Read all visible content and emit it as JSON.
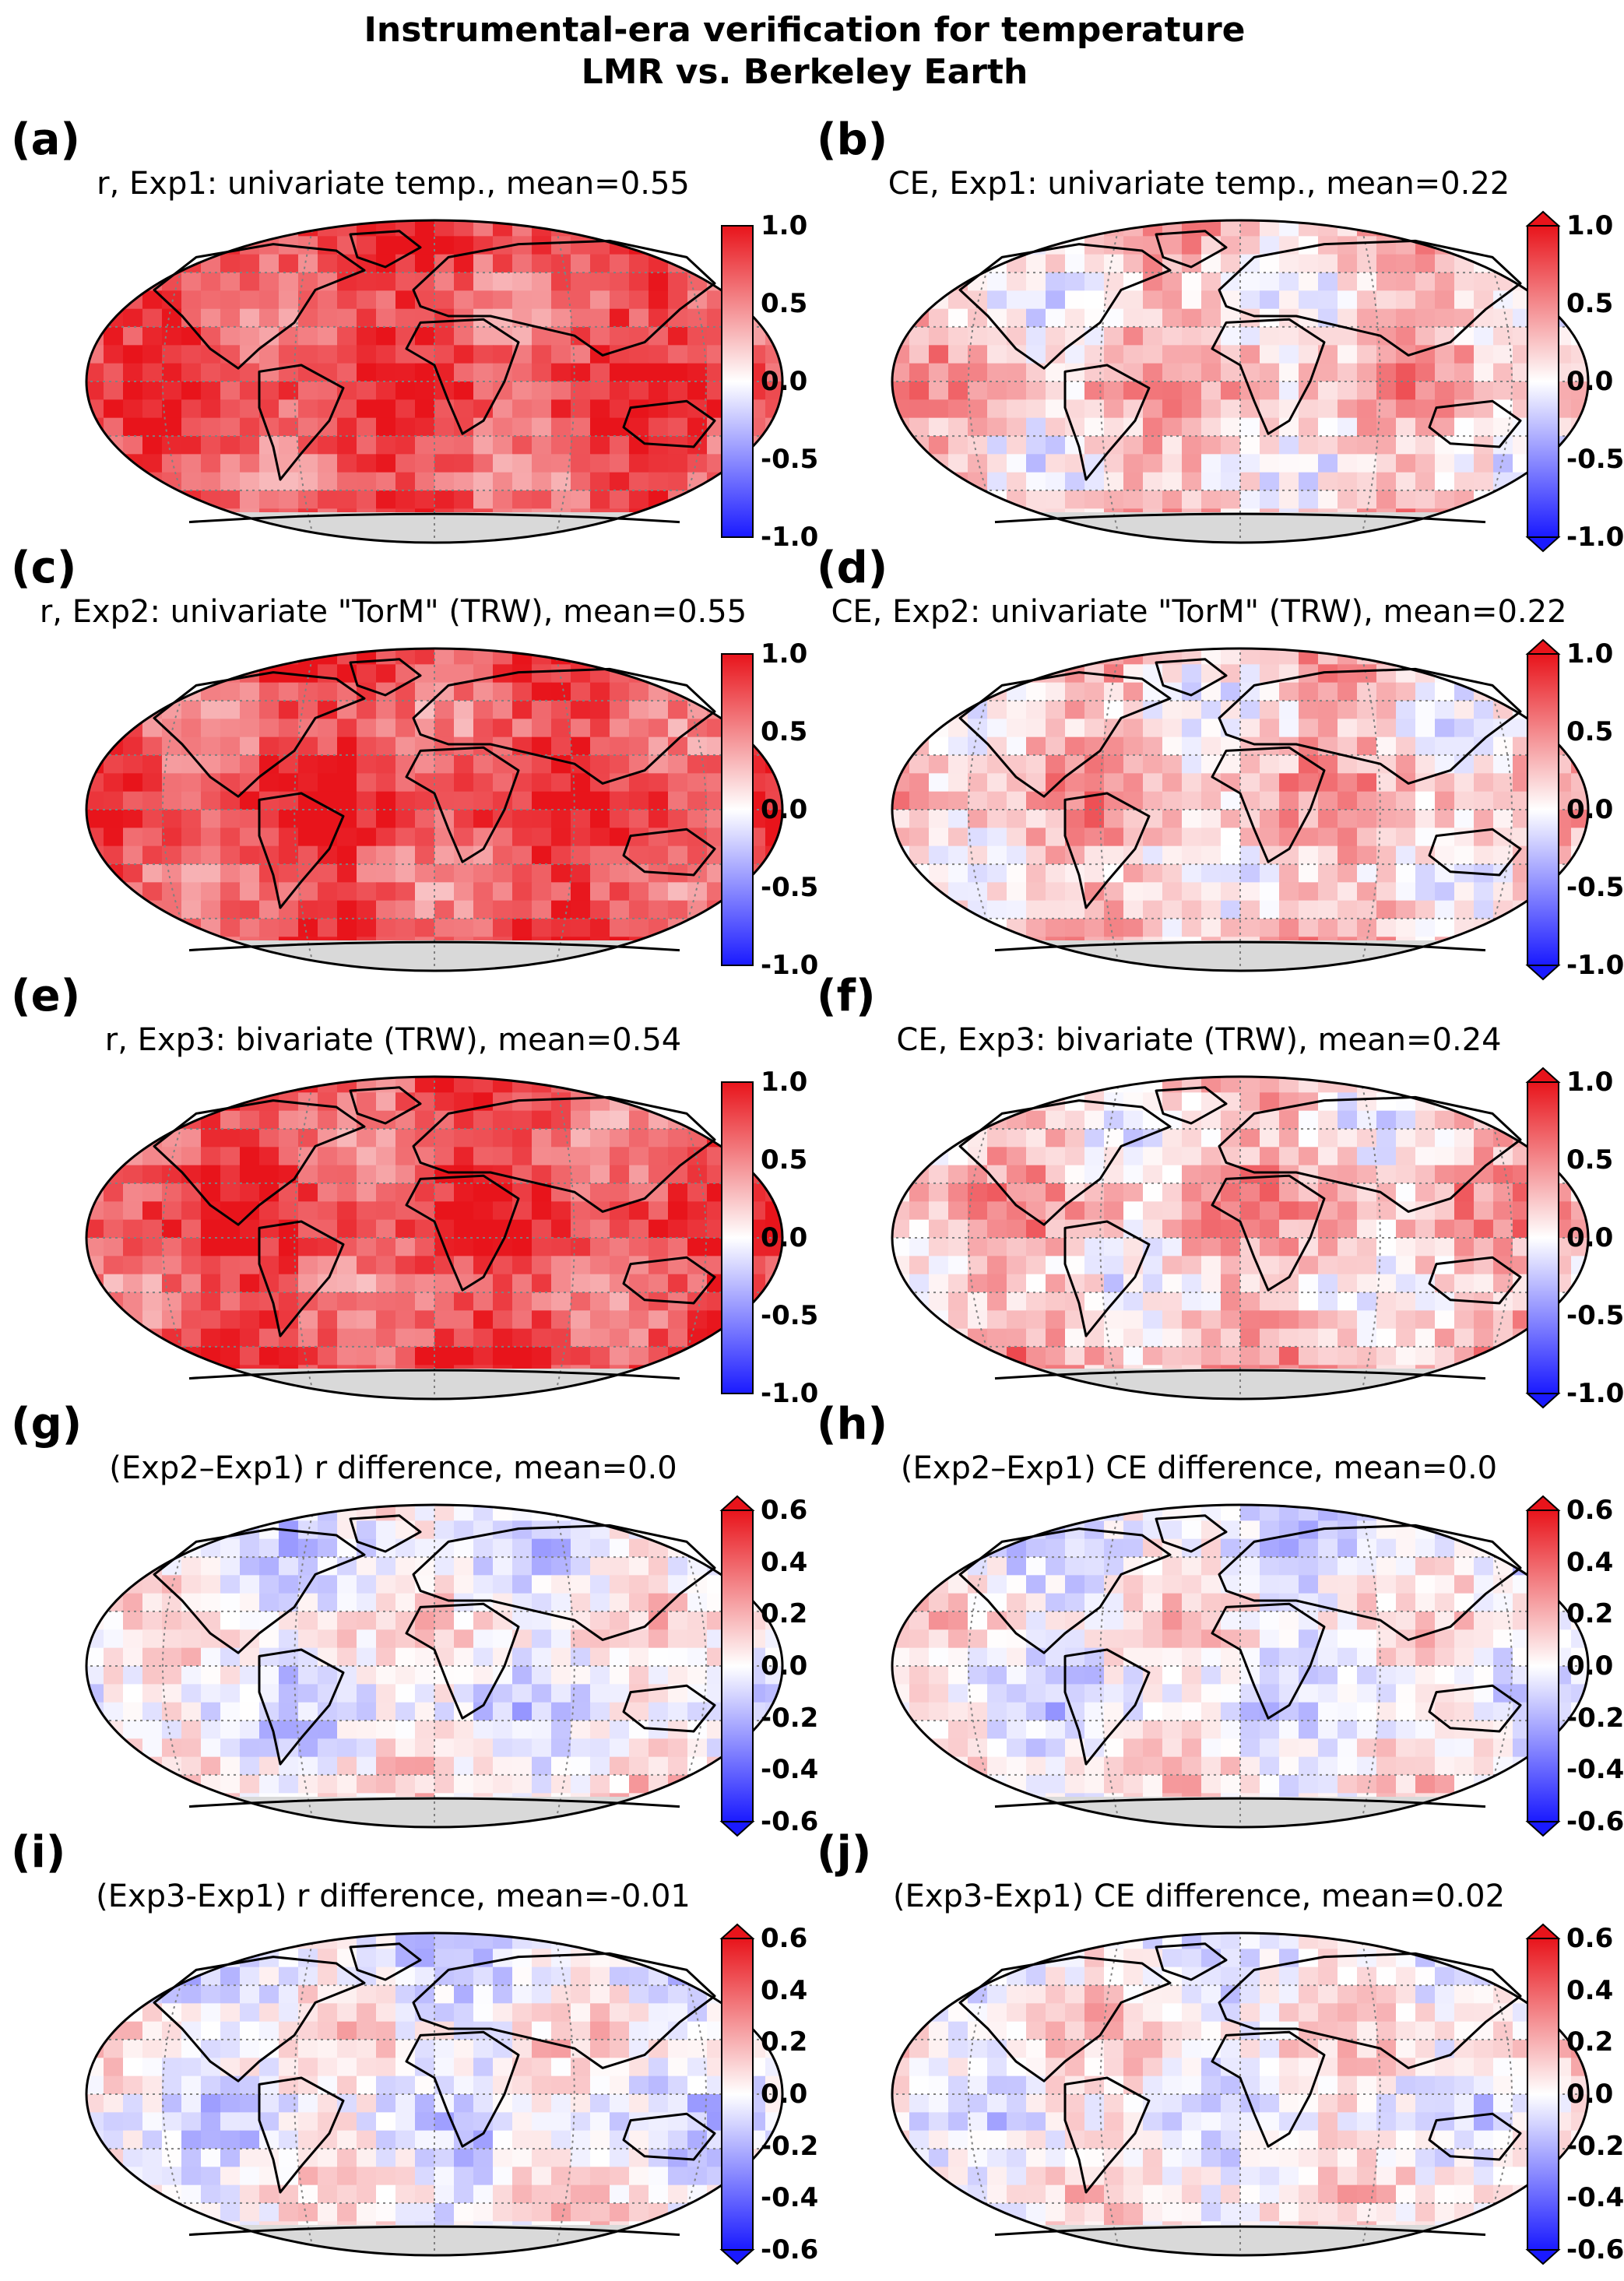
{
  "figure": {
    "title_line1": "Instrumental-era verification for temperature",
    "title_line2": "LMR vs. Berkeley Earth"
  },
  "colors": {
    "red": "#e8141b",
    "blue": "#1a1aff",
    "white": "#ffffff",
    "land_mask": "#d9d9d9",
    "coast": "#000000"
  },
  "chart_data": [
    {
      "type": "heatmap",
      "panel": "(a)",
      "title": "r, Exp1: univariate temp., mean=0.55",
      "mean": 0.55,
      "colorbar": {
        "range": [
          -1.0,
          1.0
        ],
        "ticks": [
          "1.0",
          "0.5",
          "0.0",
          "-0.5",
          "-1.0"
        ],
        "extend": "none",
        "cmap": "bwr"
      }
    },
    {
      "type": "heatmap",
      "panel": "(b)",
      "title": "CE, Exp1: univariate temp., mean=0.22",
      "mean": 0.22,
      "colorbar": {
        "range": [
          -1.0,
          1.0
        ],
        "ticks": [
          "1.0",
          "0.5",
          "0.0",
          "-0.5",
          "-1.0"
        ],
        "extend": "both",
        "cmap": "bwr"
      }
    },
    {
      "type": "heatmap",
      "panel": "(c)",
      "title": "r, Exp2: univariate \"TorM\" (TRW), mean=0.55",
      "mean": 0.55,
      "colorbar": {
        "range": [
          -1.0,
          1.0
        ],
        "ticks": [
          "1.0",
          "0.5",
          "0.0",
          "-0.5",
          "-1.0"
        ],
        "extend": "none",
        "cmap": "bwr"
      }
    },
    {
      "type": "heatmap",
      "panel": "(d)",
      "title": "CE, Exp2: univariate \"TorM\" (TRW), mean=0.22",
      "mean": 0.22,
      "colorbar": {
        "range": [
          -1.0,
          1.0
        ],
        "ticks": [
          "1.0",
          "0.5",
          "0.0",
          "-0.5",
          "-1.0"
        ],
        "extend": "both",
        "cmap": "bwr"
      }
    },
    {
      "type": "heatmap",
      "panel": "(e)",
      "title": "r, Exp3: bivariate (TRW), mean=0.54",
      "mean": 0.54,
      "colorbar": {
        "range": [
          -1.0,
          1.0
        ],
        "ticks": [
          "1.0",
          "0.5",
          "0.0",
          "-0.5",
          "-1.0"
        ],
        "extend": "none",
        "cmap": "bwr"
      }
    },
    {
      "type": "heatmap",
      "panel": "(f)",
      "title": "CE, Exp3: bivariate (TRW), mean=0.24",
      "mean": 0.24,
      "colorbar": {
        "range": [
          -1.0,
          1.0
        ],
        "ticks": [
          "1.0",
          "0.5",
          "0.0",
          "-0.5",
          "-1.0"
        ],
        "extend": "both",
        "cmap": "bwr"
      }
    },
    {
      "type": "heatmap",
      "panel": "(g)",
      "title": "(Exp2–Exp1) r difference, mean=0.0",
      "mean": 0.0,
      "colorbar": {
        "range": [
          -0.6,
          0.6
        ],
        "ticks": [
          "0.6",
          "0.4",
          "0.2",
          "0.0",
          "-0.2",
          "-0.4",
          "-0.6"
        ],
        "extend": "both",
        "cmap": "bwr"
      }
    },
    {
      "type": "heatmap",
      "panel": "(h)",
      "title": "(Exp2–Exp1) CE difference, mean=0.0",
      "mean": 0.0,
      "colorbar": {
        "range": [
          -0.6,
          0.6
        ],
        "ticks": [
          "0.6",
          "0.4",
          "0.2",
          "0.0",
          "-0.2",
          "-0.4",
          "-0.6"
        ],
        "extend": "both",
        "cmap": "bwr"
      }
    },
    {
      "type": "heatmap",
      "panel": "(i)",
      "title": "(Exp3-Exp1) r difference, mean=-0.01",
      "mean": -0.01,
      "colorbar": {
        "range": [
          -0.6,
          0.6
        ],
        "ticks": [
          "0.6",
          "0.4",
          "0.2",
          "0.0",
          "-0.2",
          "-0.4",
          "-0.6"
        ],
        "extend": "both",
        "cmap": "bwr"
      }
    },
    {
      "type": "heatmap",
      "panel": "(j)",
      "title": "(Exp3-Exp1) CE difference, mean=0.02",
      "mean": 0.02,
      "colorbar": {
        "range": [
          -0.6,
          0.6
        ],
        "ticks": [
          "0.6",
          "0.4",
          "0.2",
          "0.0",
          "-0.2",
          "-0.4",
          "-0.6"
        ],
        "extend": "both",
        "cmap": "bwr"
      }
    }
  ]
}
